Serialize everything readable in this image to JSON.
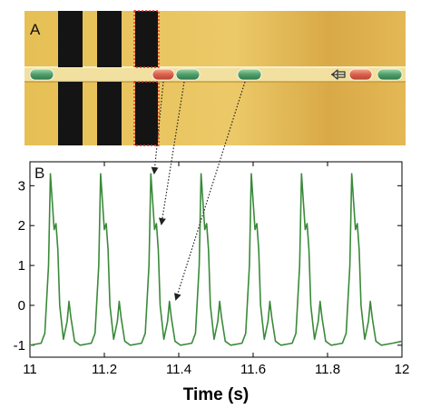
{
  "panel_a": {
    "label": "A",
    "colors": {
      "background": "#e2b84f",
      "electrode": "#111111",
      "channel": "#f3e4a8",
      "droplet_green": "#5aa873",
      "droplet_red": "#d86a52"
    },
    "icons": [
      "arrow-left-icon"
    ]
  },
  "panel_b": {
    "label": "B",
    "line_color": "#3a8a3a"
  },
  "chart_data": {
    "type": "line",
    "title": "",
    "xlabel": "Time (s)",
    "ylabel": "",
    "xlim": [
      11,
      12
    ],
    "ylim": [
      -1.3,
      3.6
    ],
    "xticks": [
      11,
      11.2,
      11.4,
      11.6,
      11.8,
      12
    ],
    "xtick_labels": [
      "11",
      "11.2",
      "11.4",
      "11.6",
      "11.8",
      "12"
    ],
    "yticks": [
      -1,
      0,
      1,
      2,
      3
    ],
    "ytick_labels": [
      "-1",
      "0",
      "1",
      "2",
      "3"
    ],
    "grid": false,
    "pulse_period": 0.135,
    "pulse_times": [
      11.055,
      11.19,
      11.325,
      11.46,
      11.595,
      11.73,
      11.865
    ],
    "x": [
      11.0,
      11.03,
      11.04,
      11.05,
      11.055,
      11.06,
      11.065,
      11.07,
      11.075,
      11.08,
      11.09,
      11.1,
      11.105,
      11.11,
      11.12,
      11.135,
      11.165,
      11.175,
      11.185,
      11.19,
      11.195,
      11.2,
      11.205,
      11.21,
      11.215,
      11.225,
      11.235,
      11.24,
      11.245,
      11.255,
      11.27,
      11.3,
      11.31,
      11.32,
      11.325,
      11.33,
      11.335,
      11.34,
      11.345,
      11.35,
      11.36,
      11.37,
      11.375,
      11.38,
      11.39,
      11.405,
      11.435,
      11.445,
      11.455,
      11.46,
      11.465,
      11.47,
      11.475,
      11.48,
      11.485,
      11.495,
      11.505,
      11.51,
      11.515,
      11.525,
      11.54,
      11.57,
      11.58,
      11.59,
      11.595,
      11.6,
      11.605,
      11.61,
      11.615,
      11.62,
      11.63,
      11.64,
      11.645,
      11.65,
      11.66,
      11.675,
      11.705,
      11.715,
      11.725,
      11.73,
      11.735,
      11.74,
      11.745,
      11.75,
      11.755,
      11.765,
      11.775,
      11.78,
      11.785,
      11.795,
      11.81,
      11.84,
      11.85,
      11.86,
      11.865,
      11.87,
      11.875,
      11.88,
      11.885,
      11.89,
      11.9,
      11.91,
      11.915,
      11.92,
      11.93,
      11.945,
      11.975,
      12.0
    ],
    "y": [
      -1.0,
      -0.95,
      -0.7,
      1.0,
      3.3,
      2.6,
      1.9,
      2.05,
      1.4,
      0.0,
      -0.85,
      -0.4,
      0.1,
      -0.3,
      -0.9,
      -1.0,
      -0.95,
      -0.7,
      1.0,
      3.3,
      2.6,
      1.9,
      2.05,
      1.4,
      0.0,
      -0.85,
      -0.4,
      0.1,
      -0.3,
      -0.9,
      -1.0,
      -0.95,
      -0.7,
      1.0,
      3.3,
      2.6,
      1.9,
      2.05,
      1.4,
      0.0,
      -0.85,
      -0.4,
      0.1,
      -0.3,
      -0.9,
      -1.0,
      -0.95,
      -0.7,
      1.0,
      3.3,
      2.6,
      1.9,
      2.05,
      1.4,
      0.0,
      -0.85,
      -0.4,
      0.1,
      -0.3,
      -0.9,
      -1.0,
      -0.95,
      -0.7,
      1.0,
      3.3,
      2.6,
      1.9,
      2.05,
      1.4,
      0.0,
      -0.85,
      -0.4,
      0.1,
      -0.3,
      -0.9,
      -1.0,
      -0.95,
      -0.7,
      1.0,
      3.3,
      2.6,
      1.9,
      2.05,
      1.4,
      0.0,
      -0.85,
      -0.4,
      0.1,
      -0.3,
      -0.9,
      -1.0,
      -0.95,
      -0.7,
      1.0,
      3.3,
      2.6,
      1.9,
      2.05,
      1.4,
      0.0,
      -0.85,
      -0.4,
      0.1,
      -0.3,
      -0.9,
      -1.0,
      -0.95,
      -0.9
    ]
  }
}
